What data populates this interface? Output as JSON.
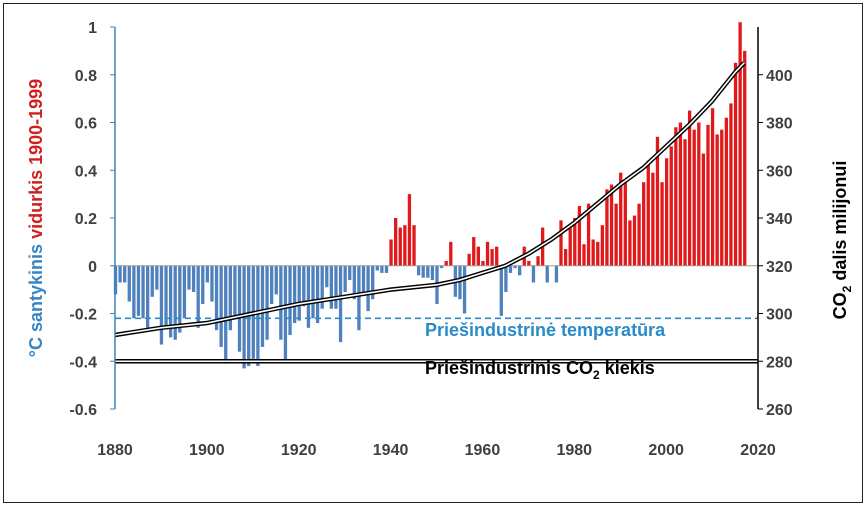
{
  "chart_data": {
    "type": "bar",
    "title": "",
    "ylabel_left": {
      "unit": "°C",
      "part1": "santykinis",
      "part2": "vidurkis 1900-1999",
      "color1": "#3a85c1",
      "color2": "#d01f1f"
    },
    "ylabel_right": {
      "prefix": "CO",
      "sub": "2",
      "suffix": " dalis milijonui"
    },
    "xlim": [
      1880,
      2020
    ],
    "ylim_left": [
      -0.6,
      1.0
    ],
    "ylim_right": [
      260,
      420
    ],
    "x_ticks": [
      "1880",
      "1900",
      "1920",
      "1940",
      "1960",
      "1980",
      "2000",
      "2020"
    ],
    "y_left_ticks": [
      "-0.6",
      "-0.4",
      "-0.2",
      "0",
      "0.2",
      "0.4",
      "0.6",
      "0.8",
      "1"
    ],
    "y_right_ticks": [
      "260",
      "280",
      "300",
      "320",
      "340",
      "360",
      "380",
      "400"
    ],
    "colors": {
      "positive": "#e0191b",
      "negative": "#4f81bd",
      "preindustrial_temp": "#2a8bc8",
      "co2_line": "#000000"
    },
    "temperature_anomaly": {
      "years": [
        1880,
        1881,
        1882,
        1883,
        1884,
        1885,
        1886,
        1887,
        1888,
        1889,
        1890,
        1891,
        1892,
        1893,
        1894,
        1895,
        1896,
        1897,
        1898,
        1899,
        1900,
        1901,
        1902,
        1903,
        1904,
        1905,
        1906,
        1907,
        1908,
        1909,
        1910,
        1911,
        1912,
        1913,
        1914,
        1915,
        1916,
        1917,
        1918,
        1919,
        1920,
        1921,
        1922,
        1923,
        1924,
        1925,
        1926,
        1927,
        1928,
        1929,
        1930,
        1931,
        1932,
        1933,
        1934,
        1935,
        1936,
        1937,
        1938,
        1939,
        1940,
        1941,
        1942,
        1943,
        1944,
        1945,
        1946,
        1947,
        1948,
        1949,
        1950,
        1951,
        1952,
        1953,
        1954,
        1955,
        1956,
        1957,
        1958,
        1959,
        1960,
        1961,
        1962,
        1963,
        1964,
        1965,
        1966,
        1967,
        1968,
        1969,
        1970,
        1971,
        1972,
        1973,
        1974,
        1975,
        1976,
        1977,
        1978,
        1979,
        1980,
        1981,
        1982,
        1983,
        1984,
        1985,
        1986,
        1987,
        1988,
        1989,
        1990,
        1991,
        1992,
        1993,
        1994,
        1995,
        1996,
        1997,
        1998,
        1999,
        2000,
        2001,
        2002,
        2003,
        2004,
        2005,
        2006,
        2007,
        2008,
        2009,
        2010,
        2011,
        2012,
        2013,
        2014,
        2015,
        2016,
        2017
      ],
      "values": [
        -0.12,
        -0.07,
        -0.07,
        -0.15,
        -0.22,
        -0.21,
        -0.22,
        -0.26,
        -0.13,
        -0.1,
        -0.33,
        -0.25,
        -0.3,
        -0.31,
        -0.28,
        -0.22,
        -0.1,
        -0.11,
        -0.26,
        -0.16,
        -0.07,
        -0.15,
        -0.27,
        -0.34,
        -0.41,
        -0.27,
        -0.21,
        -0.36,
        -0.43,
        -0.42,
        -0.39,
        -0.42,
        -0.34,
        -0.31,
        -0.16,
        -0.12,
        -0.31,
        -0.4,
        -0.29,
        -0.24,
        -0.23,
        -0.17,
        -0.26,
        -0.22,
        -0.24,
        -0.18,
        -0.09,
        -0.18,
        -0.18,
        -0.32,
        -0.11,
        -0.06,
        -0.14,
        -0.27,
        -0.12,
        -0.19,
        -0.14,
        -0.02,
        -0.03,
        -0.03,
        0.11,
        0.2,
        0.16,
        0.17,
        0.3,
        0.17,
        -0.04,
        -0.05,
        -0.05,
        -0.06,
        -0.16,
        -0.01,
        0.02,
        0.1,
        -0.13,
        -0.14,
        -0.2,
        0.05,
        0.12,
        0.08,
        0.02,
        0.1,
        0.07,
        0.08,
        -0.21,
        -0.11,
        -0.03,
        -0.01,
        -0.04,
        0.08,
        0.02,
        -0.07,
        0.04,
        0.16,
        -0.07,
        0.0,
        -0.07,
        0.19,
        0.07,
        0.16,
        0.2,
        0.25,
        0.09,
        0.26,
        0.11,
        0.1,
        0.17,
        0.32,
        0.34,
        0.26,
        0.39,
        0.36,
        0.19,
        0.21,
        0.26,
        0.35,
        0.44,
        0.39,
        0.54,
        0.35,
        0.45,
        0.5,
        0.58,
        0.6,
        0.53,
        0.65,
        0.57,
        0.6,
        0.47,
        0.59,
        0.66,
        0.55,
        0.57,
        0.62,
        0.68,
        0.85,
        1.02,
        0.9
      ]
    },
    "co2_concentration": {
      "years": [
        1880,
        1890,
        1900,
        1905,
        1910,
        1920,
        1930,
        1940,
        1950,
        1955,
        1960,
        1965,
        1970,
        1975,
        1980,
        1985,
        1990,
        1995,
        2000,
        2005,
        2010,
        2015,
        2017
      ],
      "ppm": [
        291,
        294,
        296,
        298,
        300,
        304,
        307,
        310,
        312,
        314,
        317,
        320,
        325,
        331,
        338,
        346,
        354,
        361,
        370,
        379,
        389,
        401,
        405
      ]
    },
    "annotations": {
      "preindustrial_temperature_label": "Priešindustrinė temperatūra",
      "preindustrial_temperature_value": -0.22,
      "preindustrial_co2_prefix": "Priešindustrinis CO",
      "preindustrial_co2_sub": "2",
      "preindustrial_co2_suffix": " kiekis",
      "preindustrial_co2_value": 280
    }
  }
}
